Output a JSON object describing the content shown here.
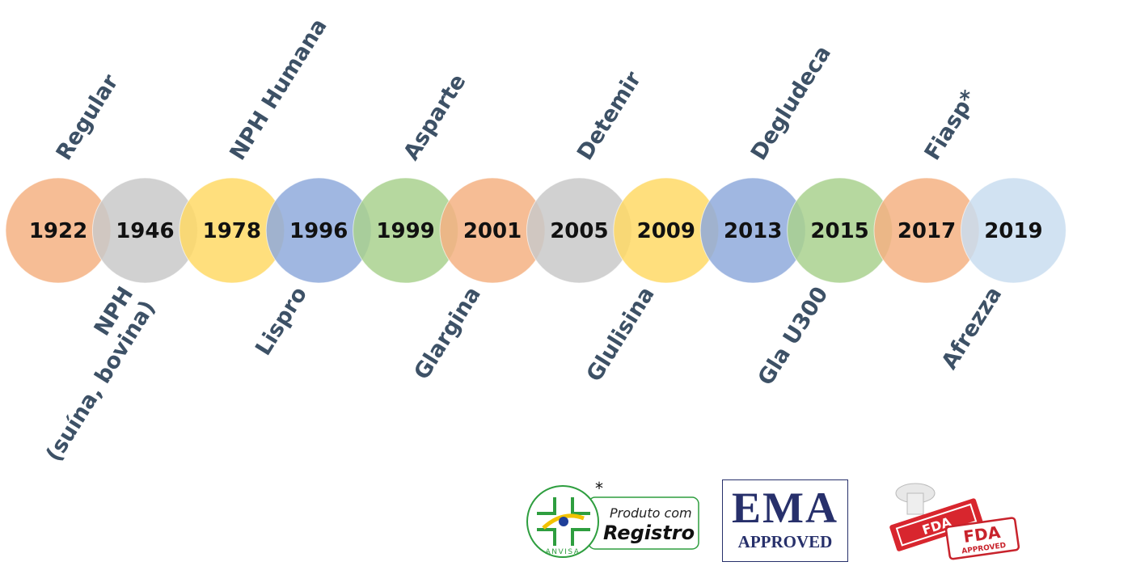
{
  "timeline": {
    "nodes": [
      {
        "year": "1922",
        "color": "#f4b183"
      },
      {
        "year": "1946",
        "color": "#c9c9c9"
      },
      {
        "year": "1978",
        "color": "#ffd966"
      },
      {
        "year": "1996",
        "color": "#8faadc"
      },
      {
        "year": "1999",
        "color": "#a9d18e"
      },
      {
        "year": "2001",
        "color": "#f4b183"
      },
      {
        "year": "2005",
        "color": "#c9c9c9"
      },
      {
        "year": "2009",
        "color": "#ffd966"
      },
      {
        "year": "2013",
        "color": "#8faadc"
      },
      {
        "year": "2015",
        "color": "#a9d18e"
      },
      {
        "year": "2017",
        "color": "#f4b183"
      },
      {
        "year": "2019",
        "color": "#c9ddf0"
      }
    ],
    "top_labels": [
      {
        "node": 0,
        "lines": [
          "Regular"
        ]
      },
      {
        "node": 2,
        "lines": [
          "NPH Humana"
        ]
      },
      {
        "node": 4,
        "lines": [
          "Asparte"
        ]
      },
      {
        "node": 6,
        "lines": [
          "Detemir"
        ]
      },
      {
        "node": 8,
        "lines": [
          "Degludeca"
        ]
      },
      {
        "node": 10,
        "lines": [
          "Fiasp*"
        ]
      }
    ],
    "bottom_labels": [
      {
        "node": 1,
        "lines": [
          "NPH",
          "(suína, bovina)"
        ]
      },
      {
        "node": 3,
        "lines": [
          "Lispro"
        ]
      },
      {
        "node": 5,
        "lines": [
          "Glargina"
        ]
      },
      {
        "node": 7,
        "lines": [
          "Glulisina"
        ]
      },
      {
        "node": 9,
        "lines": [
          "Gla U300"
        ]
      },
      {
        "node": 11,
        "lines": [
          "Afrezza"
        ]
      }
    ],
    "label_color": "#3d5166"
  },
  "badges": {
    "anvisa": {
      "asterisk": "*",
      "line1": "Produto com",
      "line2": "Registro",
      "ring_text": "ANVISA",
      "color": "#2e9e3f"
    },
    "ema": {
      "title": "EMA",
      "subtitle": "APPROVED",
      "color": "#27306b"
    },
    "fda": {
      "stamp_text": "FDA",
      "approved_text": "APPROVED",
      "color": "#c8232c"
    }
  }
}
